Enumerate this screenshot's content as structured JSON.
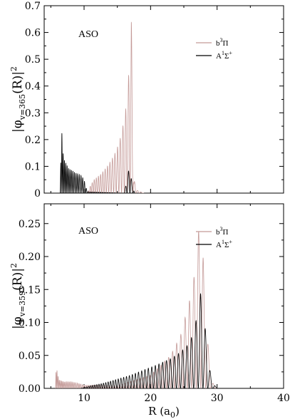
{
  "chart_data": [
    {
      "type": "line",
      "annotation": "ASO",
      "ylabel": {
        "base": "|φ",
        "sub": "v=365",
        "tail": "(R)|",
        "sup": "2"
      },
      "xlim": [
        4,
        40
      ],
      "ylim": [
        0,
        0.7
      ],
      "yticks": [
        "0",
        "0.1",
        "0.2",
        "0.3",
        "0.4",
        "0.5",
        "0.6",
        "0.7"
      ],
      "xticks": [
        "10",
        "20",
        "30",
        "40"
      ],
      "series": [
        {
          "name": "b³Π",
          "label_base": "b",
          "label_sup": "3",
          "label_tail": "Π",
          "color": "#c49a98",
          "points": [
            [
              10.5,
              0.0
            ],
            [
              11.0,
              0.03
            ],
            [
              11.5,
              0.05
            ],
            [
              12.0,
              0.06
            ],
            [
              12.5,
              0.07
            ],
            [
              13.0,
              0.085
            ],
            [
              13.5,
              0.1
            ],
            [
              14.0,
              0.12
            ],
            [
              14.5,
              0.14
            ],
            [
              15.0,
              0.17
            ],
            [
              15.5,
              0.21
            ],
            [
              16.0,
              0.27
            ],
            [
              16.3,
              0.32
            ],
            [
              16.6,
              0.4
            ],
            [
              16.9,
              0.52
            ],
            [
              17.1,
              0.68
            ],
            [
              17.3,
              0.3
            ],
            [
              17.5,
              0.05
            ],
            [
              18.0,
              0.01
            ],
            [
              19.0,
              0.0
            ]
          ]
        },
        {
          "name": "A¹Σ⁺",
          "label_base": "A",
          "label_sup": "1",
          "label_tail": "Σ",
          "label_tail_sup": "+",
          "color": "#000000",
          "points": [
            [
              6.4,
              0.0
            ],
            [
              6.6,
              0.25
            ],
            [
              6.9,
              0.13
            ],
            [
              7.3,
              0.11
            ],
            [
              7.7,
              0.09
            ],
            [
              8.2,
              0.085
            ],
            [
              8.7,
              0.075
            ],
            [
              9.2,
              0.07
            ],
            [
              9.6,
              0.065
            ],
            [
              10.0,
              0.05
            ],
            [
              10.3,
              0.02
            ],
            [
              10.6,
              0.005
            ],
            [
              16.0,
              0.0
            ],
            [
              16.4,
              0.04
            ],
            [
              16.8,
              0.1
            ],
            [
              17.2,
              0.04
            ],
            [
              17.6,
              0.0
            ]
          ]
        }
      ]
    },
    {
      "type": "line",
      "annotation": "ASO",
      "ylabel": {
        "base": "|φ",
        "sub": "v=359",
        "tail": "(R)|",
        "sup": "2"
      },
      "xlim": [
        4,
        40
      ],
      "ylim": [
        0,
        0.28
      ],
      "yticks": [
        "0.00",
        "0.05",
        "0.10",
        "0.15",
        "0.20",
        "0.25"
      ],
      "xticks": [
        "10",
        "20",
        "30",
        "40"
      ],
      "xlabel": {
        "base": "R (a",
        "sub": "0",
        "tail": ")"
      },
      "series": [
        {
          "name": "b³Π",
          "label_base": "b",
          "label_sup": "3",
          "label_tail": "Π",
          "color": "#c49a98",
          "points": [
            [
              5.7,
              0.0
            ],
            [
              5.8,
              0.034
            ],
            [
              6.2,
              0.013
            ],
            [
              7.0,
              0.01
            ],
            [
              8.0,
              0.01
            ],
            [
              9.0,
              0.008
            ],
            [
              10.0,
              0.005
            ],
            [
              15.0,
              0.004
            ],
            [
              20.0,
              0.02
            ],
            [
              23.0,
              0.05
            ],
            [
              24.5,
              0.08
            ],
            [
              25.5,
              0.12
            ],
            [
              26.3,
              0.15
            ],
            [
              26.9,
              0.2
            ],
            [
              27.4,
              0.26
            ],
            [
              27.9,
              0.2
            ],
            [
              28.5,
              0.08
            ],
            [
              29.2,
              0.01
            ],
            [
              30.0,
              0.0
            ]
          ]
        },
        {
          "name": "A¹Σ⁺",
          "label_base": "A",
          "label_sup": "1",
          "label_tail": "Σ",
          "label_tail_sup": "+",
          "color": "#000000",
          "points": [
            [
              9.5,
              0.0
            ],
            [
              11.0,
              0.004
            ],
            [
              13.0,
              0.008
            ],
            [
              15.0,
              0.014
            ],
            [
              17.0,
              0.02
            ],
            [
              19.0,
              0.028
            ],
            [
              21.0,
              0.036
            ],
            [
              23.0,
              0.045
            ],
            [
              24.5,
              0.055
            ],
            [
              25.5,
              0.065
            ],
            [
              26.3,
              0.08
            ],
            [
              27.0,
              0.11
            ],
            [
              27.5,
              0.145
            ],
            [
              28.0,
              0.115
            ],
            [
              28.6,
              0.05
            ],
            [
              29.2,
              0.01
            ],
            [
              30.0,
              0.0
            ]
          ]
        }
      ]
    }
  ]
}
